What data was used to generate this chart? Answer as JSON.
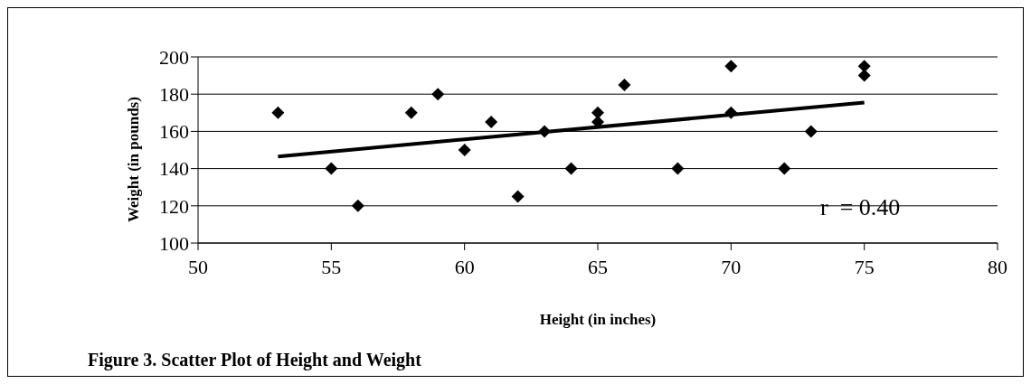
{
  "chart_data": {
    "type": "scatter",
    "title": "Figure 3. Scatter Plot of Height and Weight",
    "xlabel": "Height (in inches)",
    "ylabel": "Weight (in pounds)",
    "series": [
      {
        "marker": "diamond",
        "color": "#000000",
        "x": [
          53,
          55,
          56,
          58,
          59,
          60,
          61,
          62,
          63,
          64,
          65,
          65,
          66,
          68,
          70,
          70,
          72,
          73,
          75,
          75
        ],
        "values": [
          170,
          140,
          120,
          170,
          180,
          150,
          165,
          125,
          160,
          140,
          170,
          165,
          185,
          140,
          195,
          170,
          140,
          160,
          195,
          190
        ]
      },
      {
        "type": "line",
        "color": "#000000",
        "x": [
          53,
          75
        ],
        "values": [
          146.5,
          175.5
        ]
      }
    ],
    "xlim": [
      50,
      80
    ],
    "xticks": [
      50,
      55,
      60,
      65,
      70,
      75,
      80
    ],
    "ylim": [
      100,
      200
    ],
    "yticks": [
      100,
      120,
      140,
      160,
      180,
      200
    ],
    "grid": "y",
    "legend": false,
    "annotations": [
      "r  = 0.40"
    ]
  }
}
